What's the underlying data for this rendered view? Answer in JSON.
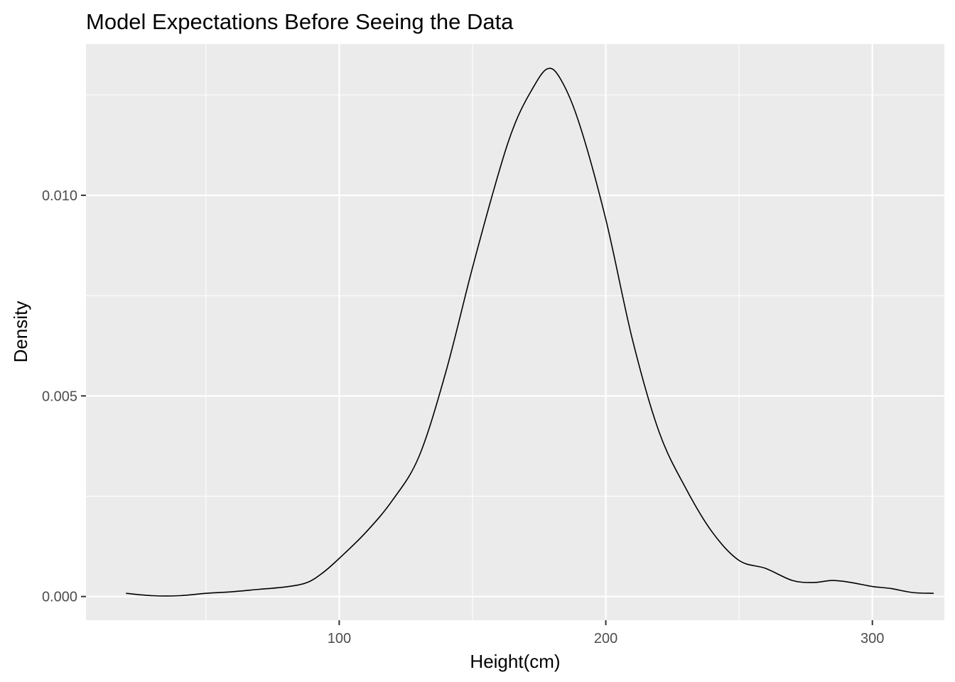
{
  "chart_data": {
    "type": "area",
    "title": "Model Expectations Before Seeing the Data",
    "xlabel": "Height(cm)",
    "ylabel": "Density",
    "xlim": [
      5,
      327
    ],
    "ylim": [
      -0.00059,
      0.01377
    ],
    "x_ticks": [
      {
        "value": 100,
        "label": "100"
      },
      {
        "value": 200,
        "label": "200"
      },
      {
        "value": 300,
        "label": "300"
      }
    ],
    "x_minor_ticks": [
      50,
      150,
      250
    ],
    "y_ticks": [
      {
        "value": 0.0,
        "label": "0.000"
      },
      {
        "value": 0.005,
        "label": "0.005"
      },
      {
        "value": 0.01,
        "label": "0.010"
      }
    ],
    "y_minor_ticks": [
      0.0025,
      0.0075,
      0.0125
    ],
    "grid": true,
    "legend": "none",
    "colors": {
      "panel_background": "#ebebeb",
      "grid_line": "#ffffff",
      "curve": "#000000",
      "tick_label": "#4d4d4d"
    },
    "series": [
      {
        "x": [
          20,
          30,
          40,
          50,
          60,
          70,
          80,
          88,
          94,
          100,
          110,
          120,
          130,
          140,
          150,
          160,
          166,
          172,
          178,
          183,
          190,
          200,
          210,
          220,
          230,
          240,
          250,
          260,
          270,
          278,
          285,
          292,
          300,
          307,
          315,
          323
        ],
        "y": [
          8e-05,
          2e-05,
          2e-05,
          8e-05,
          0.00012,
          0.00018,
          0.00024,
          0.00035,
          0.0006,
          0.00095,
          0.0016,
          0.0024,
          0.0035,
          0.0056,
          0.0082,
          0.0106,
          0.0118,
          0.0126,
          0.01315,
          0.0129,
          0.0118,
          0.0094,
          0.0064,
          0.0041,
          0.0027,
          0.0016,
          0.0009,
          0.0007,
          0.0004,
          0.00035,
          0.0004,
          0.00035,
          0.00025,
          0.0002,
          0.0001,
          8e-05
        ]
      }
    ]
  }
}
